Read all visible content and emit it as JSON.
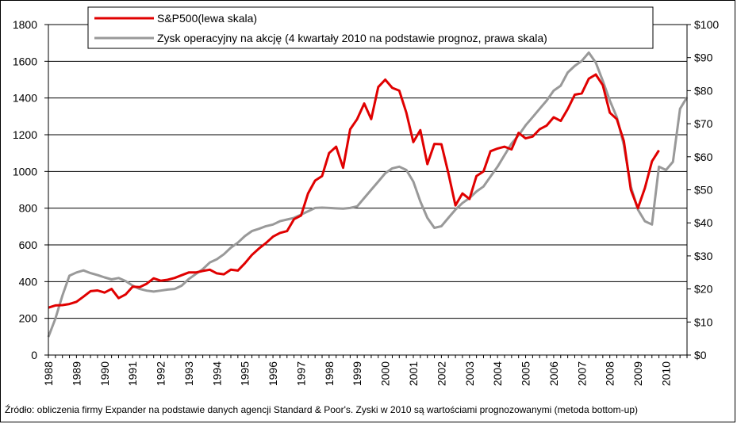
{
  "chart_data": {
    "type": "line",
    "title": "",
    "xlabel": "",
    "ylabel": "",
    "x_tick_labels": [
      "1988",
      "1989",
      "1990",
      "1991",
      "1992",
      "1993",
      "1994",
      "1995",
      "1996",
      "1997",
      "1998",
      "1999",
      "2000",
      "2001",
      "2002",
      "2003",
      "2004",
      "2005",
      "2006",
      "2007",
      "2008",
      "2009",
      "2010"
    ],
    "xlim": [
      1988,
      2010.75
    ],
    "y_left": {
      "ylim": [
        0,
        1800
      ],
      "ticks": [
        0,
        200,
        400,
        600,
        800,
        1000,
        1200,
        1400,
        1600,
        1800
      ]
    },
    "y_right": {
      "ylim": [
        0,
        100
      ],
      "ticks": [
        "$0",
        "$10",
        "$20",
        "$30",
        "$40",
        "$50",
        "$60",
        "$70",
        "$80",
        "$90",
        "$100"
      ]
    },
    "grid": "horizontal",
    "legend_position": "top",
    "series": [
      {
        "name": "S&P500(lewa skala)",
        "axis": "left",
        "color": "#e00000",
        "points": [
          [
            1988.0,
            258
          ],
          [
            1988.25,
            270
          ],
          [
            1988.5,
            272
          ],
          [
            1988.75,
            278
          ],
          [
            1989.0,
            290
          ],
          [
            1989.25,
            318
          ],
          [
            1989.5,
            348
          ],
          [
            1989.75,
            352
          ],
          [
            1990.0,
            340
          ],
          [
            1990.25,
            360
          ],
          [
            1990.5,
            310
          ],
          [
            1990.75,
            330
          ],
          [
            1991.0,
            372
          ],
          [
            1991.25,
            370
          ],
          [
            1991.5,
            388
          ],
          [
            1991.75,
            418
          ],
          [
            1992.0,
            405
          ],
          [
            1992.25,
            410
          ],
          [
            1992.5,
            420
          ],
          [
            1992.75,
            435
          ],
          [
            1993.0,
            450
          ],
          [
            1993.25,
            450
          ],
          [
            1993.5,
            458
          ],
          [
            1993.75,
            465
          ],
          [
            1994.0,
            445
          ],
          [
            1994.25,
            440
          ],
          [
            1994.5,
            465
          ],
          [
            1994.75,
            460
          ],
          [
            1995.0,
            500
          ],
          [
            1995.25,
            545
          ],
          [
            1995.5,
            580
          ],
          [
            1995.75,
            610
          ],
          [
            1996.0,
            645
          ],
          [
            1996.25,
            665
          ],
          [
            1996.5,
            675
          ],
          [
            1996.75,
            740
          ],
          [
            1997.0,
            760
          ],
          [
            1997.25,
            880
          ],
          [
            1997.5,
            950
          ],
          [
            1997.75,
            975
          ],
          [
            1998.0,
            1100
          ],
          [
            1998.25,
            1135
          ],
          [
            1998.5,
            1020
          ],
          [
            1998.75,
            1230
          ],
          [
            1999.0,
            1285
          ],
          [
            1999.25,
            1370
          ],
          [
            1999.5,
            1285
          ],
          [
            1999.75,
            1460
          ],
          [
            2000.0,
            1500
          ],
          [
            2000.25,
            1455
          ],
          [
            2000.5,
            1440
          ],
          [
            2000.75,
            1320
          ],
          [
            2001.0,
            1160
          ],
          [
            2001.25,
            1225
          ],
          [
            2001.5,
            1040
          ],
          [
            2001.75,
            1150
          ],
          [
            2002.0,
            1148
          ],
          [
            2002.25,
            990
          ],
          [
            2002.5,
            815
          ],
          [
            2002.75,
            880
          ],
          [
            2003.0,
            850
          ],
          [
            2003.25,
            975
          ],
          [
            2003.5,
            1000
          ],
          [
            2003.75,
            1110
          ],
          [
            2004.0,
            1125
          ],
          [
            2004.25,
            1135
          ],
          [
            2004.5,
            1120
          ],
          [
            2004.75,
            1210
          ],
          [
            2005.0,
            1180
          ],
          [
            2005.25,
            1190
          ],
          [
            2005.5,
            1230
          ],
          [
            2005.75,
            1250
          ],
          [
            2006.0,
            1295
          ],
          [
            2006.25,
            1275
          ],
          [
            2006.5,
            1340
          ],
          [
            2006.75,
            1418
          ],
          [
            2007.0,
            1425
          ],
          [
            2007.25,
            1505
          ],
          [
            2007.5,
            1528
          ],
          [
            2007.75,
            1470
          ],
          [
            2008.0,
            1320
          ],
          [
            2008.25,
            1285
          ],
          [
            2008.5,
            1165
          ],
          [
            2008.75,
            900
          ],
          [
            2009.0,
            800
          ],
          [
            2009.25,
            910
          ],
          [
            2009.5,
            1055
          ],
          [
            2009.75,
            1115
          ]
        ]
      },
      {
        "name": "Zysk operacyjny na akcję (4 kwartały 2010 na podstawie prognoz, prawa skala)",
        "axis": "right",
        "color": "#999999",
        "points": [
          [
            1988.0,
            5.5
          ],
          [
            1988.25,
            11
          ],
          [
            1988.5,
            18
          ],
          [
            1988.75,
            24
          ],
          [
            1989.0,
            25
          ],
          [
            1989.25,
            25.6
          ],
          [
            1989.5,
            24.8
          ],
          [
            1989.75,
            24.2
          ],
          [
            1990.0,
            23.5
          ],
          [
            1990.25,
            22.9
          ],
          [
            1990.5,
            23.3
          ],
          [
            1990.75,
            22.4
          ],
          [
            1991.0,
            21
          ],
          [
            1991.25,
            20
          ],
          [
            1991.5,
            19.5
          ],
          [
            1991.75,
            19.2
          ],
          [
            1992.0,
            19.5
          ],
          [
            1992.25,
            19.8
          ],
          [
            1992.5,
            20.0
          ],
          [
            1992.75,
            21
          ],
          [
            1993.0,
            23
          ],
          [
            1993.25,
            24.5
          ],
          [
            1993.5,
            26
          ],
          [
            1993.75,
            28
          ],
          [
            1994.0,
            29
          ],
          [
            1994.25,
            30.5
          ],
          [
            1994.5,
            32.5
          ],
          [
            1994.75,
            34
          ],
          [
            1995.0,
            36
          ],
          [
            1995.25,
            37.5
          ],
          [
            1995.5,
            38.2
          ],
          [
            1995.75,
            39
          ],
          [
            1996.0,
            39.5
          ],
          [
            1996.25,
            40.5
          ],
          [
            1996.5,
            41
          ],
          [
            1996.75,
            41.5
          ],
          [
            1997.0,
            42.5
          ],
          [
            1997.25,
            43.5
          ],
          [
            1997.5,
            44.5
          ],
          [
            1997.75,
            44.6
          ],
          [
            1998.0,
            44.5
          ],
          [
            1998.25,
            44.4
          ],
          [
            1998.5,
            44.3
          ],
          [
            1998.75,
            44.5
          ],
          [
            1999.0,
            45
          ],
          [
            1999.25,
            47.5
          ],
          [
            1999.5,
            50
          ],
          [
            1999.75,
            52.5
          ],
          [
            2000.0,
            55
          ],
          [
            2000.25,
            56.5
          ],
          [
            2000.5,
            57
          ],
          [
            2000.75,
            56
          ],
          [
            2001.0,
            52.5
          ],
          [
            2001.25,
            46.5
          ],
          [
            2001.5,
            41.5
          ],
          [
            2001.75,
            38.5
          ],
          [
            2002.0,
            39
          ],
          [
            2002.25,
            41.5
          ],
          [
            2002.5,
            44
          ],
          [
            2002.75,
            46
          ],
          [
            2003.0,
            47.5
          ],
          [
            2003.25,
            49.5
          ],
          [
            2003.5,
            51
          ],
          [
            2003.75,
            54
          ],
          [
            2004.0,
            57
          ],
          [
            2004.25,
            60.5
          ],
          [
            2004.5,
            64
          ],
          [
            2004.75,
            66.5
          ],
          [
            2005.0,
            69.5
          ],
          [
            2005.25,
            72
          ],
          [
            2005.5,
            74.5
          ],
          [
            2005.75,
            77
          ],
          [
            2006.0,
            80
          ],
          [
            2006.25,
            81.5
          ],
          [
            2006.5,
            85.5
          ],
          [
            2006.75,
            87.5
          ],
          [
            2007.0,
            89
          ],
          [
            2007.25,
            91.5
          ],
          [
            2007.5,
            88.5
          ],
          [
            2007.75,
            83
          ],
          [
            2008.0,
            77
          ],
          [
            2008.25,
            72
          ],
          [
            2008.5,
            63.5
          ],
          [
            2008.75,
            51
          ],
          [
            2009.0,
            44
          ],
          [
            2009.25,
            40.5
          ],
          [
            2009.5,
            39.5
          ],
          [
            2009.75,
            57
          ],
          [
            2010.0,
            56
          ],
          [
            2010.25,
            58.5
          ],
          [
            2010.5,
            74.5
          ],
          [
            2010.75,
            78
          ]
        ]
      }
    ]
  },
  "source_note": "Źródło: obliczenia firmy Expander na podstawie danych agencji Standard & Poor's. Zyski w 2010 są wartościami prognozowanymi (metoda bottom-up)"
}
